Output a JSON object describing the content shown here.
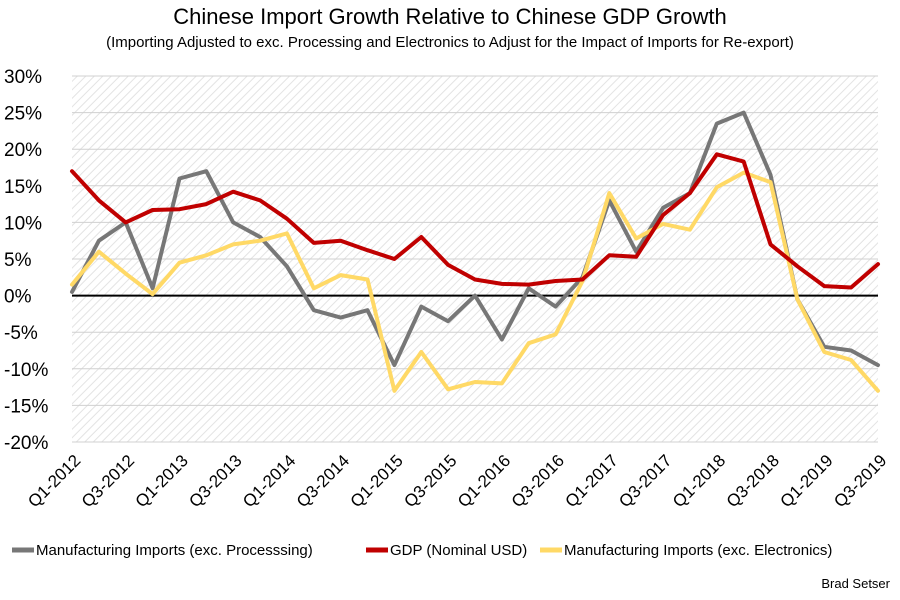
{
  "chart_data": {
    "type": "line",
    "title": "Chinese Import Growth Relative to Chinese GDP Growth",
    "subtitle": "(Importing Adjusted to exc. Processing and Electronics to Adjust for the Impact of Imports for Re-export)",
    "xlabel": "",
    "ylabel": "",
    "ylim": [
      -20,
      30
    ],
    "y_ticks": [
      -20,
      -15,
      -10,
      -5,
      0,
      5,
      10,
      15,
      20,
      25,
      30
    ],
    "y_tick_labels": [
      "-20%",
      "-15%",
      "-10%",
      "-5%",
      "0%",
      "5%",
      "10%",
      "15%",
      "20%",
      "25%",
      "30%"
    ],
    "x": [
      "Q1-2012",
      "Q2-2012",
      "Q3-2012",
      "Q4-2012",
      "Q1-2013",
      "Q2-2013",
      "Q3-2013",
      "Q4-2013",
      "Q1-2014",
      "Q2-2014",
      "Q3-2014",
      "Q4-2014",
      "Q1-2015",
      "Q2-2015",
      "Q3-2015",
      "Q4-2015",
      "Q1-2016",
      "Q2-2016",
      "Q3-2016",
      "Q4-2016",
      "Q1-2017",
      "Q2-2017",
      "Q3-2017",
      "Q4-2017",
      "Q1-2018",
      "Q2-2018",
      "Q3-2018",
      "Q4-2018",
      "Q1-2019",
      "Q2-2019",
      "Q3-2019"
    ],
    "x_tick_labels": [
      "Q1-2012",
      "Q3-2012",
      "Q1-2013",
      "Q3-2013",
      "Q1-2014",
      "Q3-2014",
      "Q1-2015",
      "Q3-2015",
      "Q1-2016",
      "Q3-2016",
      "Q1-2017",
      "Q3-2017",
      "Q1-2018",
      "Q3-2018",
      "Q1-2019",
      "Q3-2019"
    ],
    "grid": true,
    "legend_position": "bottom",
    "series": [
      {
        "name": "Manufacturing Imports (exc. Processsing)",
        "color": "#777777",
        "values": [
          0.5,
          7.5,
          10,
          1,
          16,
          17,
          10,
          8,
          4,
          -2,
          -3,
          -2,
          -9.5,
          -1.5,
          -3.5,
          0,
          -6,
          1,
          -1.5,
          2.5,
          13,
          6,
          12,
          14,
          23.5,
          25,
          16.5,
          -0.5,
          -7,
          -7.5,
          -9.5
        ]
      },
      {
        "name": "GDP (Nominal USD)",
        "color": "#c00000",
        "values": [
          17,
          13,
          10,
          11.7,
          11.8,
          12.5,
          14.2,
          13,
          10.5,
          7.2,
          7.5,
          6.2,
          5,
          8,
          4.2,
          2.2,
          1.6,
          1.5,
          2,
          2.2,
          5.5,
          5.3,
          11,
          14,
          19.3,
          18.3,
          7,
          4,
          1.3,
          1.1,
          4.3
        ]
      },
      {
        "name": "Manufacturing Imports (exc. Electronics)",
        "color": "#ffd966",
        "values": [
          1.5,
          6,
          3,
          0.2,
          4.5,
          5.5,
          7,
          7.5,
          8.5,
          1,
          2.8,
          2.2,
          -13,
          -7.7,
          -12.8,
          -11.8,
          -12,
          -6.5,
          -5.3,
          2,
          14,
          7.8,
          9.8,
          9,
          14.8,
          16.8,
          15.5,
          -0.5,
          -7.7,
          -8.8,
          -13
        ]
      }
    ]
  },
  "source_label": "Brad Setser"
}
